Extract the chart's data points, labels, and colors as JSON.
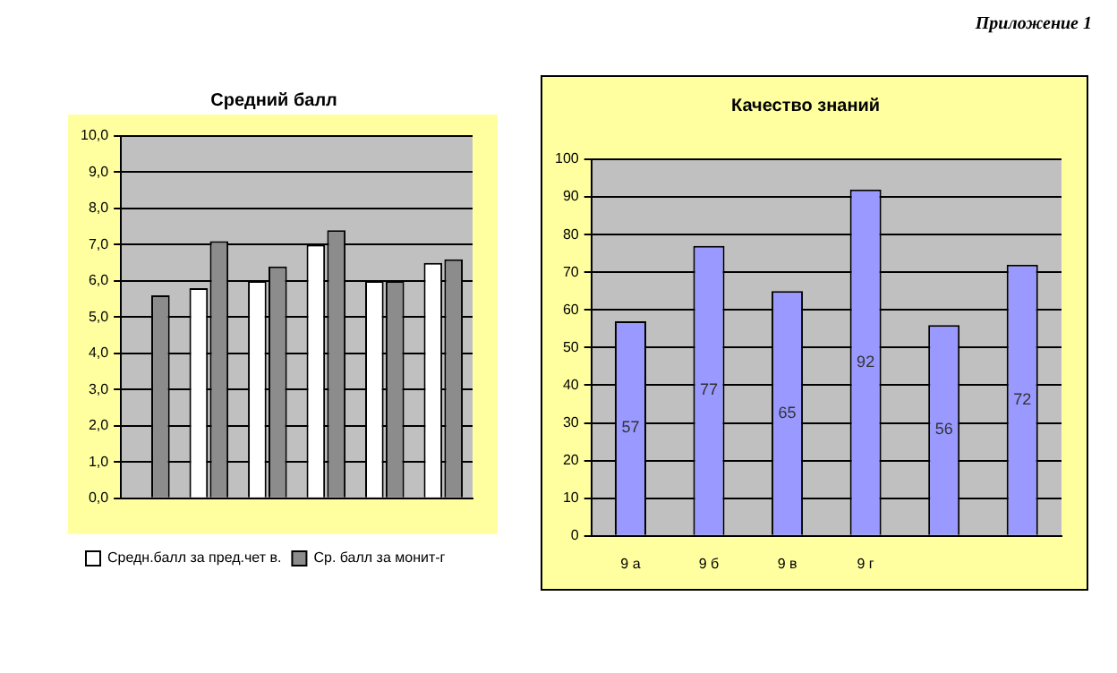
{
  "chart_data": [
    {
      "type": "bar",
      "title": "Средний балл",
      "categories": [
        null,
        null,
        null,
        null,
        null,
        null
      ],
      "series": [
        {
          "name": "Средн.балл за пред.чет в.",
          "color": "#ffffff",
          "values": [
            null,
            5.8,
            6.0,
            7.0,
            6.0,
            6.5
          ]
        },
        {
          "name": "Ср. балл за монит-г",
          "color": "#8c8c8c",
          "values": [
            5.6,
            7.1,
            6.4,
            7.4,
            6.0,
            6.6
          ]
        }
      ],
      "ylim": [
        0,
        10
      ],
      "yticks": [
        {
          "value": 0,
          "label": "0,0"
        },
        {
          "value": 1,
          "label": "1,0"
        },
        {
          "value": 2,
          "label": "2,0"
        },
        {
          "value": 3,
          "label": "3,0"
        },
        {
          "value": 4,
          "label": "4,0"
        },
        {
          "value": 5,
          "label": "5,0"
        },
        {
          "value": 6,
          "label": "6,0"
        },
        {
          "value": 7,
          "label": "7,0"
        },
        {
          "value": 8,
          "label": "8,0"
        },
        {
          "value": 9,
          "label": "9,0"
        },
        {
          "value": 10,
          "label": "10,0"
        }
      ],
      "grid": "y",
      "legend": "bottom"
    },
    {
      "type": "bar",
      "title": "Качество знаний",
      "categories": [
        "9 а",
        "9 б",
        "9 в",
        "9 г",
        null,
        null
      ],
      "series": [
        {
          "color": "#9999ff",
          "values": [
            57,
            77,
            65,
            92,
            56,
            72
          ]
        }
      ],
      "ylim": [
        0,
        100
      ],
      "yticks": [
        0,
        10,
        20,
        30,
        40,
        50,
        60,
        70,
        80,
        90,
        100
      ],
      "grid": "y",
      "data_labels": true,
      "annotations": [
        "Приложение 1"
      ]
    }
  ]
}
